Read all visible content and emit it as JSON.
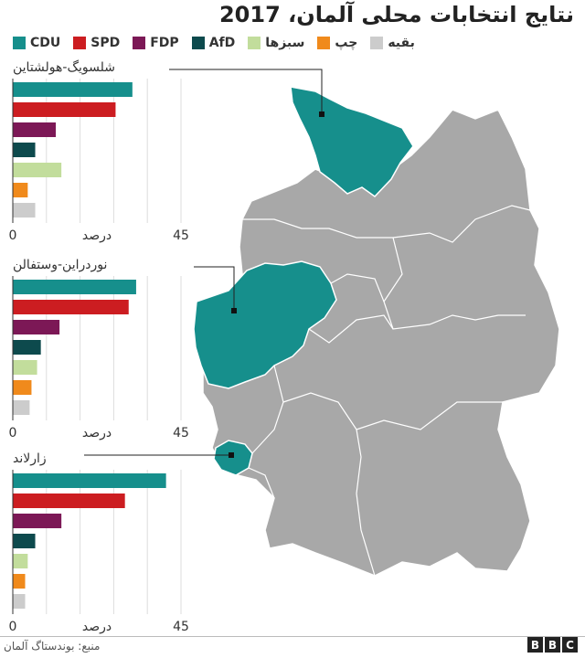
{
  "title": "نتایج انتخابات محلی آلمان، 2017",
  "legend": [
    {
      "label": "CDU",
      "color": "#168f8c"
    },
    {
      "label": "SPD",
      "color": "#cc1d21"
    },
    {
      "label": "FDP",
      "color": "#7c1856"
    },
    {
      "label": "AfD",
      "color": "#0d4a4d"
    },
    {
      "label": "سبزها",
      "color": "#c2dd9c"
    },
    {
      "label": "چپ",
      "color": "#f08a1c"
    },
    {
      "label": "بقیه",
      "color": "#cccccc"
    }
  ],
  "chart_data": [
    {
      "type": "bar",
      "orientation": "horizontal",
      "title": "شلسویگ-هولشتاین",
      "categories": [
        "CDU",
        "SPD",
        "FDP",
        "AfD",
        "سبزها",
        "چپ",
        "بقیه"
      ],
      "values": [
        32,
        27.5,
        11.5,
        6,
        13,
        4,
        6
      ],
      "colors": [
        "#168f8c",
        "#cc1d21",
        "#7c1856",
        "#0d4a4d",
        "#c2dd9c",
        "#f08a1c",
        "#cccccc"
      ],
      "xlabel": "درصد",
      "xlim": [
        0,
        45
      ],
      "tick_labels": [
        "0",
        "45"
      ],
      "grid": true
    },
    {
      "type": "bar",
      "orientation": "horizontal",
      "title": "نوردراین-وستفالن",
      "categories": [
        "CDU",
        "SPD",
        "FDP",
        "AfD",
        "سبزها",
        "چپ",
        "بقیه"
      ],
      "values": [
        33,
        31,
        12.5,
        7.5,
        6.5,
        5,
        4.5
      ],
      "colors": [
        "#168f8c",
        "#cc1d21",
        "#7c1856",
        "#0d4a4d",
        "#c2dd9c",
        "#f08a1c",
        "#cccccc"
      ],
      "xlabel": "درصد",
      "xlim": [
        0,
        45
      ],
      "tick_labels": [
        "0",
        "45"
      ],
      "grid": true
    },
    {
      "type": "bar",
      "orientation": "horizontal",
      "title": "زارلاند",
      "categories": [
        "CDU",
        "SPD",
        "FDP",
        "AfD",
        "سبزها",
        "چپ",
        "بقیه"
      ],
      "values": [
        41,
        30,
        13,
        6,
        4,
        3.3,
        3.3
      ],
      "colors": [
        "#168f8c",
        "#cc1d21",
        "#7c1856",
        "#0d4a4d",
        "#c2dd9c",
        "#f08a1c",
        "#cccccc"
      ],
      "xlabel": "درصد",
      "xlim": [
        0,
        45
      ],
      "tick_labels": [
        "0",
        "45"
      ],
      "grid": true
    }
  ],
  "map": {
    "land_color": "#a8a8a8",
    "highlight_color": "#168f8c",
    "border_color": "#ffffff"
  },
  "source": "منبع: بوندستاگ آلمان",
  "logo_letters": [
    "B",
    "B",
    "C"
  ]
}
